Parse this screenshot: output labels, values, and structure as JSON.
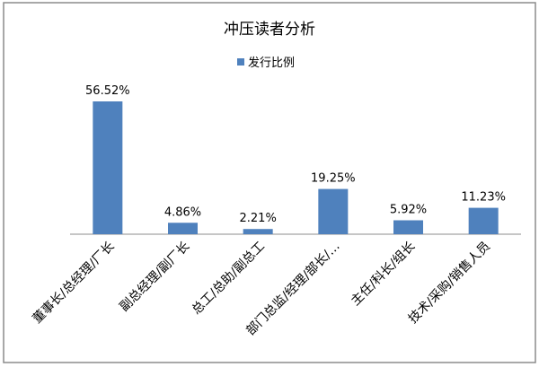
{
  "chart_data": {
    "type": "bar",
    "title": "冲压读者分析",
    "categories": [
      "董事长/总经理/厂长",
      "副总经理/副厂长",
      "总工/总助/副总工",
      "部门总监/经理/部长/…",
      "主任/科长/组长",
      "技术/采购/销售人员"
    ],
    "series": [
      {
        "name": "发行比例",
        "values": [
          56.52,
          4.86,
          2.21,
          19.25,
          5.92,
          11.23
        ],
        "labels": [
          "56.52%",
          "4.86%",
          "2.21%",
          "19.25%",
          "5.92%",
          "11.23%"
        ],
        "color": "#4f81bd"
      }
    ],
    "xlabel": "",
    "ylabel": "",
    "ylim": [
      0,
      60
    ],
    "grid": false,
    "legend": "top"
  }
}
